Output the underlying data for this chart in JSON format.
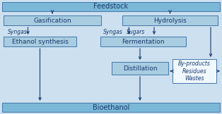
{
  "bg_color": "#cce0f0",
  "box_fill": "#a8cce0",
  "box_edge": "#4477aa",
  "byproduct_fill": "#f0f8ff",
  "byproduct_edge": "#4477aa",
  "wide_fill": "#7bb8d8",
  "wide_edge": "#4477aa",
  "arrow_color": "#1a3a6e",
  "text_color": "#1a3a6e",
  "feedstock_text": "Feedstock",
  "bioethanol_text": "Bioethanol",
  "gasification_text": "Gasification",
  "hydrolysis_text": "Hydrolysis",
  "ethanol_synthesis_text": "Ethanol synthesis",
  "fermentation_text": "Fermentation",
  "distillation_text": "Distillation",
  "byproducts_line1": "By-products",
  "byproducts_line2": "Residues",
  "byproducts_line3": "Wastes",
  "syngas1_text": "Syngas",
  "syngas2_text": "Syngas",
  "sugars_text": "Sugars",
  "fig_width": 3.14,
  "fig_height": 1.62,
  "dpi": 100
}
